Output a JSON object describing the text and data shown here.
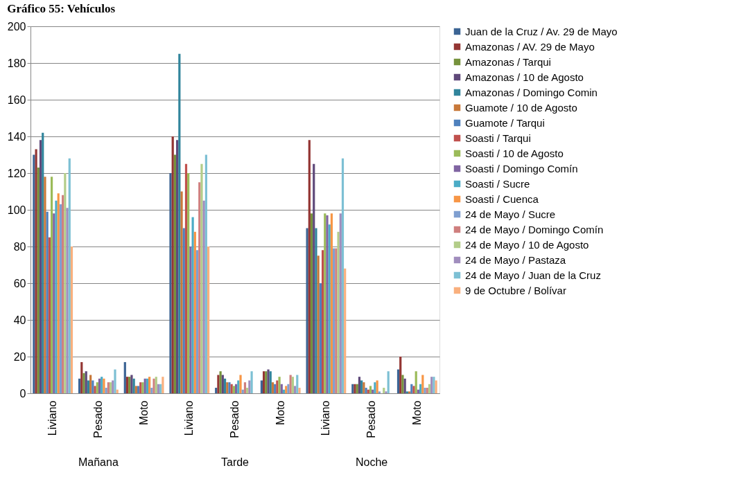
{
  "chart_data": {
    "type": "bar",
    "title": "Gráfico 55: Vehículos",
    "categories": [
      "Liviano",
      "Pesado",
      "Moto",
      "Liviano",
      "Pesado",
      "Moto",
      "Liviano",
      "Pesado",
      "Moto"
    ],
    "annotations": [
      "Mañana",
      "Tarde",
      "Noche"
    ],
    "series": [
      {
        "name": "Juan de la Cruz / Av. 29 de Mayo",
        "color": "#3c6494",
        "values": [
          130,
          8,
          17,
          120,
          3,
          7,
          90,
          5,
          13
        ]
      },
      {
        "name": "Amazonas / AV. 29 de Mayo",
        "color": "#943634",
        "values": [
          133,
          17,
          9,
          140,
          10,
          12,
          138,
          5,
          20
        ]
      },
      {
        "name": "Amazonas / Tarqui",
        "color": "#76923c",
        "values": [
          123,
          11,
          9,
          130,
          12,
          12,
          98,
          5,
          10
        ]
      },
      {
        "name": "Amazonas / 10 de Agosto",
        "color": "#5f497a",
        "values": [
          138,
          12,
          10,
          138,
          10,
          13,
          125,
          9,
          8
        ]
      },
      {
        "name": "Amazonas / Domingo Comin",
        "color": "#31859c",
        "values": [
          142,
          7,
          8,
          185,
          8,
          12,
          90,
          7,
          1
        ]
      },
      {
        "name": "Guamote / 10 de Agosto",
        "color": "#c8793a",
        "values": [
          118,
          10,
          4,
          110,
          6,
          6,
          75,
          6,
          1
        ]
      },
      {
        "name": "Guamote / Tarqui",
        "color": "#4f81bd",
        "values": [
          99,
          7,
          4,
          90,
          6,
          5,
          60,
          3,
          5
        ]
      },
      {
        "name": "Soasti / Tarqui",
        "color": "#c0504d",
        "values": [
          85,
          4,
          6,
          125,
          5,
          7,
          78,
          2,
          4
        ]
      },
      {
        "name": "Soasti / 10 de Agosto",
        "color": "#9bbb59",
        "values": [
          118,
          6,
          6,
          120,
          4,
          9,
          98,
          4,
          12
        ]
      },
      {
        "name": "Soasti / Domingo Comín",
        "color": "#8064a2",
        "values": [
          98,
          8,
          8,
          80,
          5,
          5,
          97,
          2,
          2
        ]
      },
      {
        "name": "Soasti / Sucre",
        "color": "#4bacc6",
        "values": [
          105,
          9,
          8,
          96,
          7,
          2,
          92,
          6,
          5
        ]
      },
      {
        "name": "Soasti / Cuenca",
        "color": "#f79646",
        "values": [
          109,
          8,
          9,
          88,
          10,
          4,
          98,
          7,
          10
        ]
      },
      {
        "name": "24 de Mayo / Sucre",
        "color": "#7f9fd0",
        "values": [
          103,
          3,
          3,
          78,
          2,
          5,
          79,
          1,
          3
        ]
      },
      {
        "name": "24 de Mayo / Domingo Comín",
        "color": "#cf7f7e",
        "values": [
          108,
          6,
          8,
          115,
          6,
          10,
          79,
          0,
          3
        ]
      },
      {
        "name": "24 de Mayo / 10 de Agosto",
        "color": "#b3cd89",
        "values": [
          120,
          6,
          9,
          125,
          3,
          9,
          88,
          3,
          5
        ]
      },
      {
        "name": "24 de Mayo / Pastaza",
        "color": "#a08dbd",
        "values": [
          101,
          7,
          5,
          105,
          7,
          4,
          98,
          1,
          9
        ]
      },
      {
        "name": "24 de Mayo / Juan de la Cruz",
        "color": "#7dc0d4",
        "values": [
          128,
          13,
          5,
          130,
          12,
          10,
          128,
          12,
          9
        ]
      },
      {
        "name": "9 de Octubre / Bolívar",
        "color": "#f9b07e",
        "values": [
          80,
          2,
          9,
          80,
          0,
          3,
          68,
          0,
          7
        ]
      }
    ],
    "ylim": [
      0,
      200
    ],
    "yticks": [
      0,
      20,
      40,
      60,
      80,
      100,
      120,
      140,
      160,
      180,
      200
    ],
    "grid": "y",
    "legend": "right"
  }
}
